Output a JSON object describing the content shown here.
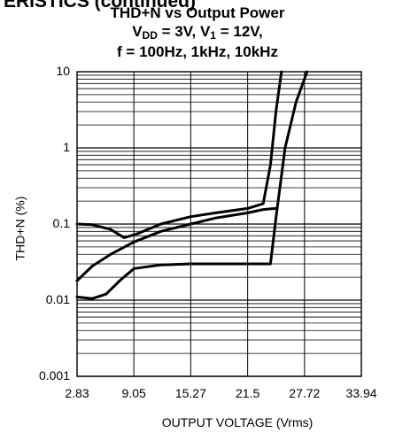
{
  "page_header": "ERISTICS (continued)",
  "chart_data": {
    "type": "line",
    "title_line1": "THD+N vs Output Power",
    "title_line2_main": "V",
    "title_line2_sub1": "DD",
    "title_line2_mid": " = 3V, V",
    "title_line2_sub2": "1",
    "title_line2_end": " = 12V,",
    "title_line3": "f = 100Hz, 1kHz, 10kHz",
    "xlabel": "OUTPUT VOLTAGE (Vrms)",
    "ylabel": "THD+N (%)",
    "x_tick_labels": [
      "2.83",
      "9.05",
      "15.27",
      "21.5",
      "27.72",
      "33.94"
    ],
    "x_ticks": [
      2.83,
      9.05,
      15.27,
      21.5,
      27.72,
      33.94
    ],
    "y_tick_labels": [
      "10",
      "1",
      "0.1",
      "0.01",
      "0.001"
    ],
    "y_ticks": [
      10,
      1,
      0.1,
      0.01,
      0.001
    ],
    "xlim": [
      2.83,
      33.94
    ],
    "ylim": [
      0.001,
      10
    ],
    "yscale": "log",
    "grid": true,
    "series": [
      {
        "x": [
          2.83,
          4.5,
          6.5,
          8.0,
          9.5,
          12,
          15.27,
          18,
          21.5,
          23.2,
          24.0,
          24.6,
          25.2
        ],
        "y": [
          0.1,
          0.098,
          0.085,
          0.066,
          0.075,
          0.1,
          0.125,
          0.14,
          0.16,
          0.185,
          0.6,
          3.0,
          10
        ]
      },
      {
        "x": [
          2.83,
          4.5,
          6.5,
          9.05,
          12,
          15.27,
          18,
          21.5,
          23.2,
          24.0,
          24.6
        ],
        "y": [
          0.018,
          0.028,
          0.04,
          0.058,
          0.08,
          0.1,
          0.12,
          0.14,
          0.155,
          0.158,
          0.16
        ]
      },
      {
        "x": [
          2.83,
          4.5,
          6.0,
          7.5,
          9.05,
          12,
          15.27,
          18,
          21.5,
          24.0,
          24.6,
          25.6,
          26.8,
          28.0
        ],
        "y": [
          0.011,
          0.0105,
          0.012,
          0.018,
          0.026,
          0.029,
          0.03,
          0.03,
          0.03,
          0.03,
          0.12,
          1.0,
          4.0,
          10
        ]
      }
    ]
  }
}
